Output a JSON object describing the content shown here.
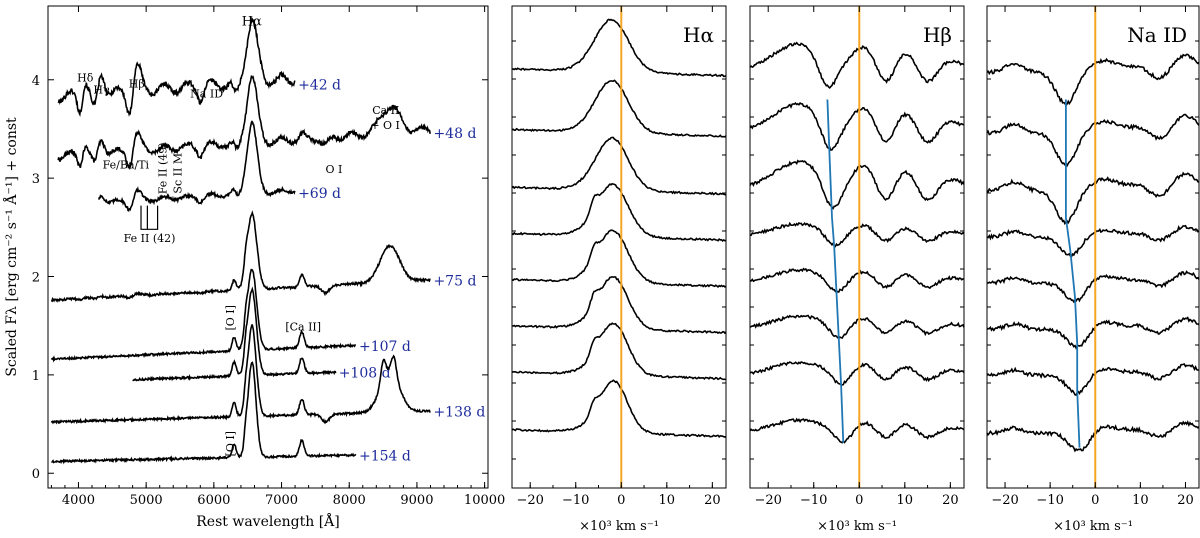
{
  "chart_data": [
    {
      "type": "line",
      "panel": "full spectra",
      "xlabel": "Rest wavelength [Å]",
      "ylabel": "Scaled Fλ [erg cm⁻² s⁻¹ Å⁻¹] + const",
      "xlim": [
        3550,
        10050
      ],
      "ylim": [
        -0.15,
        4.75
      ],
      "xticks": [
        4000,
        5000,
        6000,
        7000,
        8000,
        9000,
        10000
      ],
      "yticks": [
        0,
        1,
        2,
        3,
        4
      ],
      "series": [
        {
          "name": "+42 d",
          "x_range": [
            3700,
            7200
          ],
          "offset": 3.82
        },
        {
          "name": "+48 d",
          "x_range": [
            3700,
            9200
          ],
          "offset": 3.22
        },
        {
          "name": "+69 d",
          "x_range": [
            4300,
            7200
          ],
          "offset": 2.72
        },
        {
          "name": "+75 d",
          "x_range": [
            3600,
            9200
          ],
          "offset": 1.76
        },
        {
          "name": "+107 d",
          "x_range": [
            3600,
            8100
          ],
          "offset": 1.16
        },
        {
          "name": "+108 d",
          "x_range": [
            4800,
            7800
          ],
          "offset": 0.92
        },
        {
          "name": "+138 d",
          "x_range": [
            3600,
            9200
          ],
          "offset": 0.52
        },
        {
          "name": "+154 d",
          "x_range": [
            3600,
            8100
          ],
          "offset": 0.12
        }
      ],
      "annotations": [
        {
          "text": "Hα",
          "x": 6560,
          "y": 4.55
        },
        {
          "text": "Hδ",
          "x": 4100,
          "y": 3.98
        },
        {
          "text": "Hγ",
          "x": 4340,
          "y": 3.86
        },
        {
          "text": "Hβ",
          "x": 4861,
          "y": 3.92
        },
        {
          "text": "Na ID",
          "x": 5893,
          "y": 3.82
        },
        {
          "text": "Ca II",
          "x": 8540,
          "y": 3.65
        },
        {
          "text": "+ O I",
          "x": 8530,
          "y": 3.5
        },
        {
          "text": "Fe/Ba/Ti",
          "x": 4700,
          "y": 3.1
        },
        {
          "text": "Fe II (49)",
          "x": 5300,
          "y": 3.1
        },
        {
          "text": "Sc II M",
          "x": 5520,
          "y": 3.05
        },
        {
          "text": "O I",
          "x": 7774,
          "y": 3.05
        },
        {
          "text": "Fe II (42)",
          "x": 5050,
          "y": 2.35
        },
        {
          "text": "[O I]",
          "x": 6300,
          "y": 1.58
        },
        {
          "text": "[Ca II]",
          "x": 7320,
          "y": 1.45
        },
        {
          "text": "[O I]",
          "x": 6300,
          "y": 0.3
        }
      ]
    },
    {
      "type": "line",
      "panel": "Hα",
      "title": "Hα",
      "xlabel": "×10³ km s⁻¹",
      "xlim": [
        -24,
        23
      ],
      "xticks": [
        -20,
        -10,
        0,
        10,
        20
      ],
      "reference_line_x": 0,
      "offsets": [
        7.6,
        6.55,
        5.55,
        4.75,
        3.95,
        3.15,
        2.35,
        1.35
      ]
    },
    {
      "type": "line",
      "panel": "Hβ",
      "title": "Hβ",
      "xlabel": "×10³ km s⁻¹",
      "xlim": [
        -24,
        23
      ],
      "xticks": [
        -20,
        -10,
        0,
        10,
        20
      ],
      "reference_line_x": 0,
      "offsets": [
        7.6,
        6.55,
        5.55,
        4.75,
        3.95,
        3.15,
        2.35,
        1.35
      ],
      "absorption_minima_kkms": [
        -7,
        -6.5,
        -6,
        -5.5,
        -5,
        -4.5,
        -4,
        -3.5
      ]
    },
    {
      "type": "line",
      "panel": "Na ID",
      "title": "Na ID",
      "xlabel": "×10³ km s⁻¹",
      "xlim": [
        -24,
        23
      ],
      "xticks": [
        -20,
        -10,
        0,
        10,
        20
      ],
      "reference_line_x": 0,
      "offsets": [
        7.6,
        6.55,
        5.55,
        4.75,
        3.95,
        3.15,
        2.35,
        1.35
      ],
      "absorption_minima_kkms": [
        -6.5,
        -6.5,
        -6.5,
        -5.5,
        -4.5,
        -4,
        -4,
        -3.5
      ]
    }
  ],
  "colors": {
    "spectrum": "#000000",
    "zero_line": "#f5a623",
    "velocity_track": "#1f77b4",
    "epoch_label": "#1f2d9c"
  }
}
